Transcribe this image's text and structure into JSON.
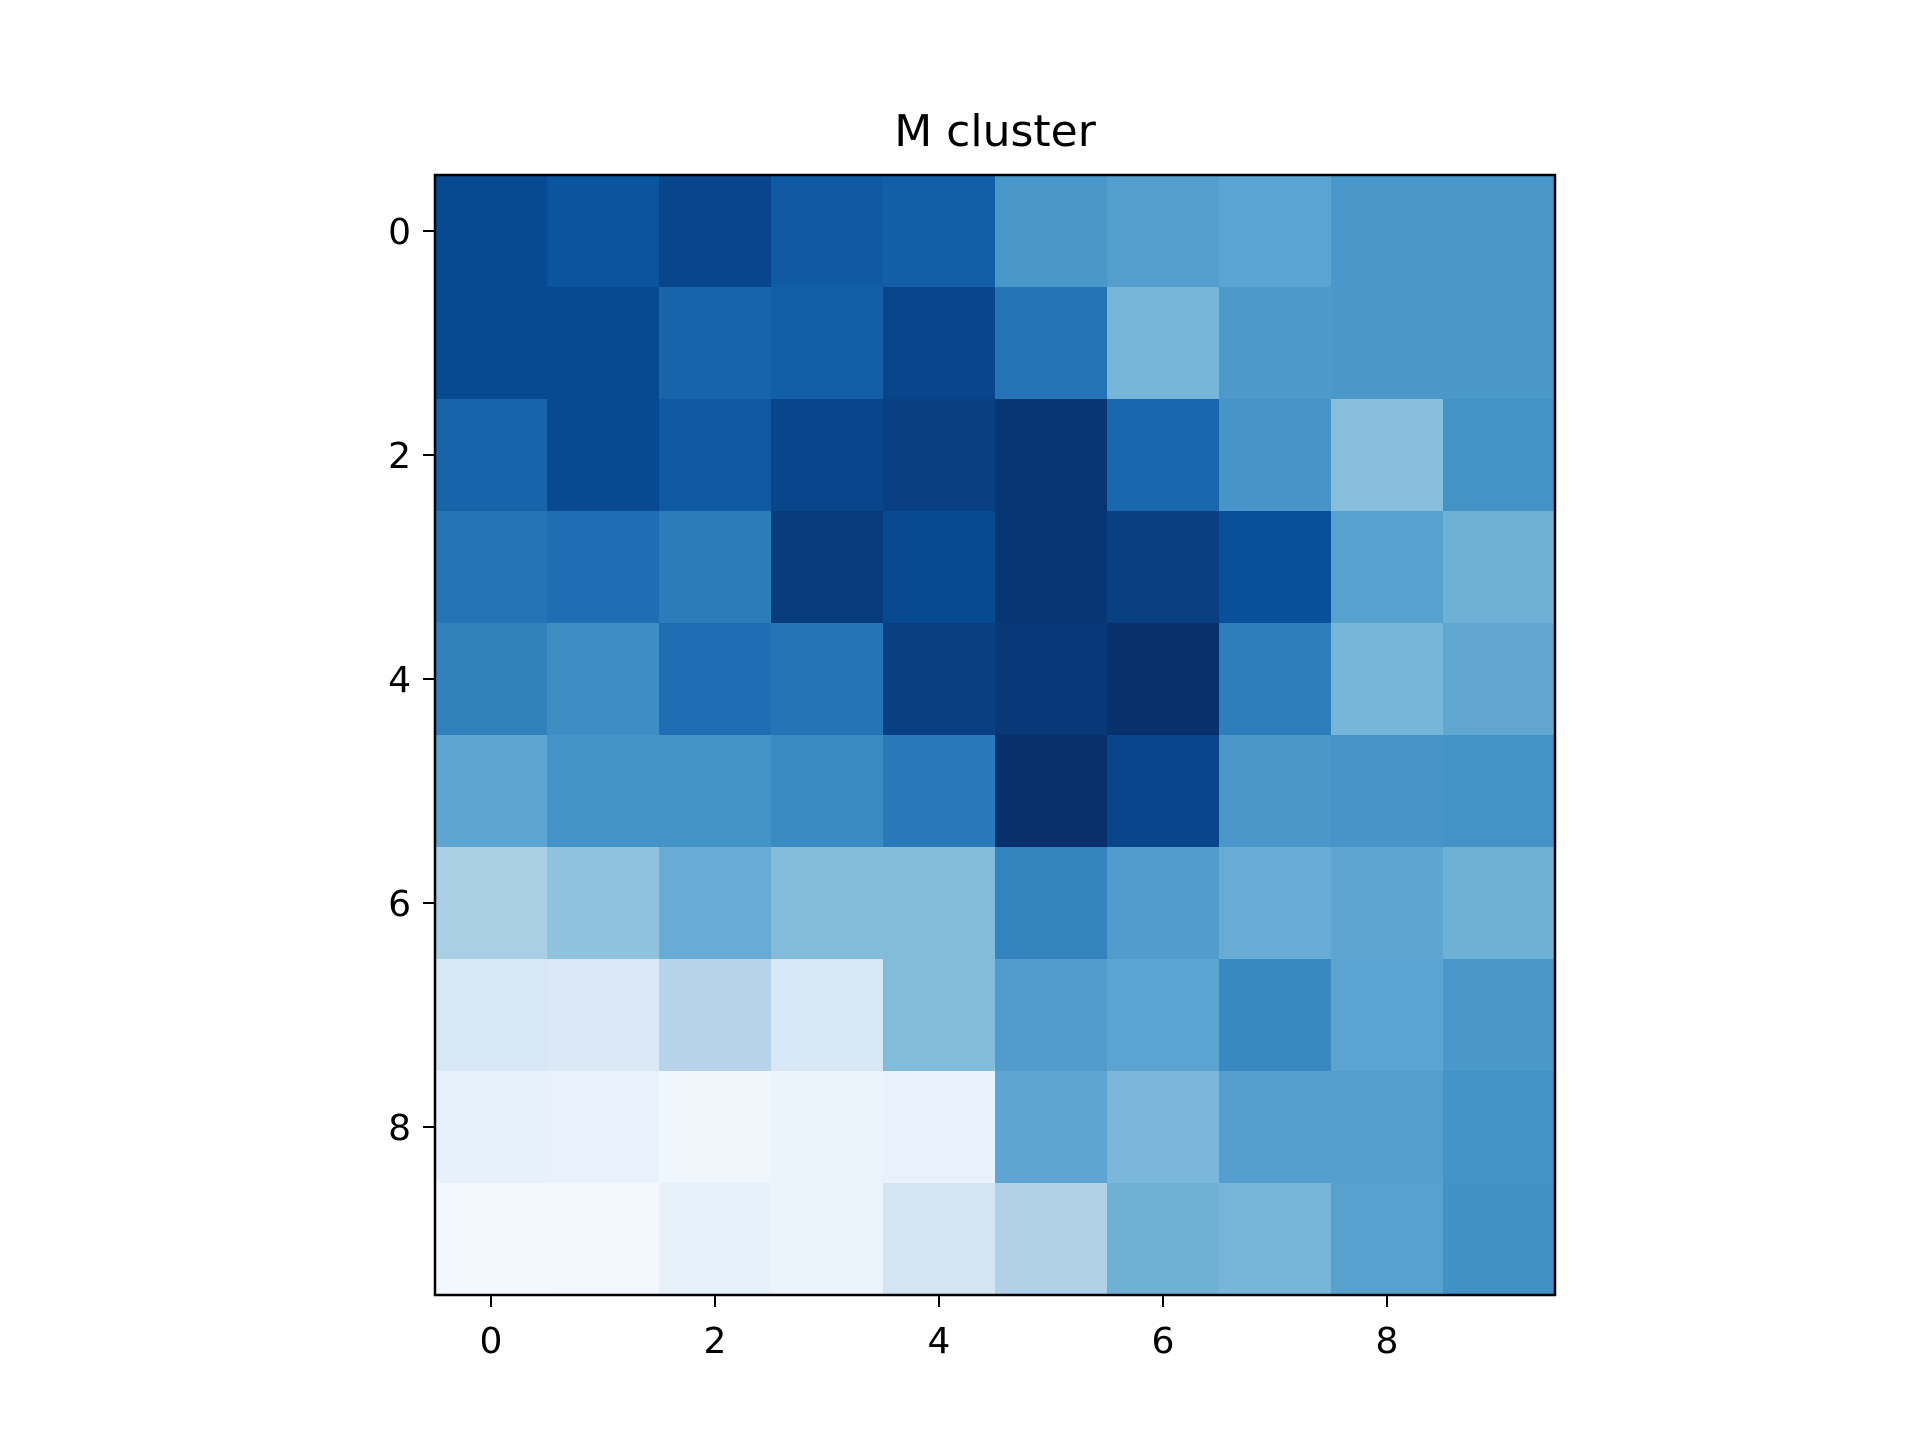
{
  "chart_data": {
    "type": "heatmap",
    "title": "M cluster",
    "xlabel": "",
    "ylabel": "",
    "colormap": "Blues",
    "vmin": 0,
    "vmax": 1,
    "rows": [
      0,
      1,
      2,
      3,
      4,
      5,
      6,
      7,
      8,
      9
    ],
    "cols": [
      0,
      1,
      2,
      3,
      4,
      5,
      6,
      7,
      8,
      9
    ],
    "x_ticks": [
      0,
      2,
      4,
      6,
      8
    ],
    "y_ticks": [
      0,
      2,
      4,
      6,
      8
    ],
    "xlim": [
      -0.5,
      9.5
    ],
    "ylim": [
      9.5,
      -0.5
    ],
    "grid": false,
    "colorbar": false,
    "values": [
      [
        0.9,
        0.86,
        0.92,
        0.84,
        0.82,
        0.6,
        0.57,
        0.55,
        0.6,
        0.6
      ],
      [
        0.9,
        0.9,
        0.8,
        0.82,
        0.92,
        0.74,
        0.47,
        0.59,
        0.6,
        0.6
      ],
      [
        0.8,
        0.9,
        0.84,
        0.92,
        0.94,
        0.98,
        0.79,
        0.61,
        0.43,
        0.62
      ],
      [
        0.74,
        0.76,
        0.71,
        0.96,
        0.9,
        0.98,
        0.94,
        0.88,
        0.56,
        0.49
      ],
      [
        0.69,
        0.64,
        0.76,
        0.74,
        0.94,
        0.97,
        1.0,
        0.7,
        0.47,
        0.53
      ],
      [
        0.54,
        0.62,
        0.62,
        0.65,
        0.72,
        1.0,
        0.92,
        0.6,
        0.61,
        0.62
      ],
      [
        0.34,
        0.41,
        0.51,
        0.44,
        0.44,
        0.68,
        0.58,
        0.51,
        0.54,
        0.49
      ],
      [
        0.16,
        0.14,
        0.3,
        0.16,
        0.44,
        0.58,
        0.55,
        0.66,
        0.55,
        0.6
      ],
      [
        0.08,
        0.07,
        0.04,
        0.06,
        0.07,
        0.54,
        0.46,
        0.57,
        0.57,
        0.62
      ],
      [
        0.02,
        0.03,
        0.08,
        0.06,
        0.18,
        0.32,
        0.49,
        0.47,
        0.56,
        0.63
      ]
    ]
  }
}
